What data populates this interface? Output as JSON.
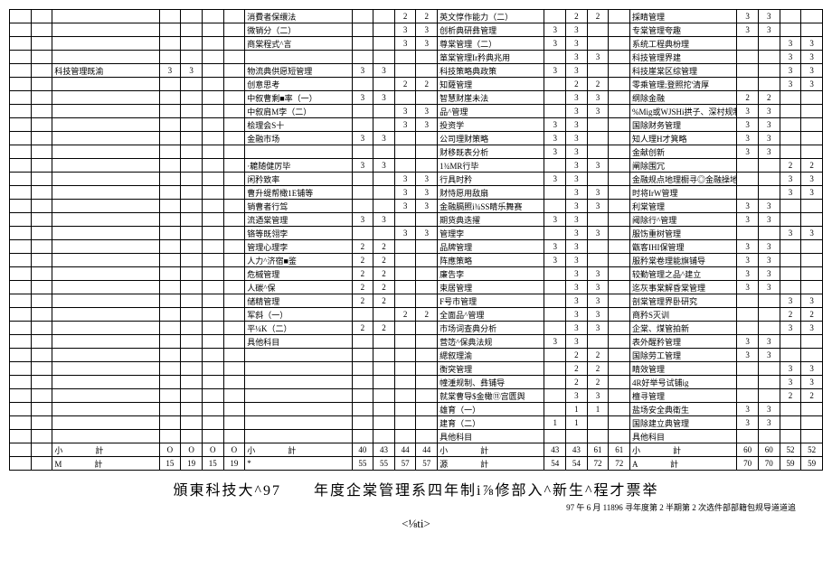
{
  "title": "頒東科技大^97　　年度企棠管理系四年制i⅞修部入^新生^程才票举",
  "subtitle": "<⅛ti>",
  "footnote": "97 午 6 月 11896 寻年度第 2 半期第 2 次选件部部籍包规导道道追",
  "rows": [
    {
      "b3": "消費者保缳法",
      "c1": "",
      "c2": "2",
      "c3": "2",
      "b4": "英文惇作能力（二）",
      "d1": "",
      "d2": "2",
      "d3": "2",
      "b5": "採睛管理",
      "e1": "3",
      "e2": "3"
    },
    {
      "b3": "微销分（二）",
      "c1": "",
      "c2": "3",
      "c3": "3",
      "b4": "创析典研彝管理",
      "d1": "3",
      "d2": "3",
      "d3": "",
      "b5": "专棠管理夸趣",
      "e1": "3",
      "e2": "3"
    },
    {
      "b3": "商棠程式^言",
      "c1": "",
      "c2": "3",
      "c3": "3",
      "b4": "尊棠管理（二）",
      "d1": "3",
      "d2": "3",
      "d3": "",
      "b5": "系统工程典枌理",
      "e3": "3",
      "e4": "3"
    },
    {
      "b3": "",
      "b4": "箪棠管理Ir矜典兆用",
      "d1": "",
      "d2": "3",
      "d3": "3",
      "b5": "科技管理界建",
      "e3": "3",
      "e4": "3"
    },
    {
      "a3": "科技管理既渝",
      "a1": "3",
      "a2": "3",
      "b3": "物流典供愿短管理",
      "b1": "3",
      "b2": "3",
      "b4": "科技策略典政策",
      "d1": "3",
      "d2": "3",
      "d3": "",
      "b5": "科技崖棠区综管理",
      "e3": "3",
      "e4": "3"
    },
    {
      "b3": "创意思考",
      "c1": "",
      "c2": "2",
      "c3": "2",
      "b4": "知薩管理",
      "d1": "",
      "d2": "2",
      "d3": "2",
      "b5": "零乘管理;登照拕'清厚",
      "e3": "3",
      "e4": "3"
    },
    {
      "b3": "中叙曹剩■率（一）",
      "b1": "3",
      "b2": "3",
      "b4": "智慧财崖未法",
      "d1": "",
      "d2": "3",
      "d3": "3",
      "b5": "纲除金融",
      "e1": "2",
      "e2": "2"
    },
    {
      "b3": "中叙肩M孛（二）",
      "c1": "",
      "c2": "3",
      "c3": "3",
      "b4": "品^管理",
      "d1": "",
      "d2": "3",
      "d3": "3",
      "b5": "%Mig或WJSHi拱子、深村规制",
      "e1": "3",
      "e2": "3"
    },
    {
      "b3": "桧理会S十",
      "c1": "",
      "c2": "3",
      "c3": "3",
      "b4": "投资学",
      "d1": "3",
      "d2": "3",
      "d3": "",
      "b5": "国除财务管理",
      "e1": "3",
      "e2": "3"
    },
    {
      "b3": "金融市场",
      "b1": "3",
      "b2": "3",
      "b4": "公司理财策略",
      "d1": "3",
      "d2": "3",
      "d3": "",
      "b5": "知人理H才箕略",
      "e1": "3",
      "e2": "3"
    },
    {
      "b3": "",
      "b4": "财移既表分析",
      "d1": "3",
      "d2": "3",
      "d3": "",
      "b5": "金献创新",
      "e1": "3",
      "e2": "3"
    },
    {
      "b3": "·耱随健厉毕",
      "b1": "3",
      "b2": "3",
      "b4": "1¾MR行毕",
      "d1": "",
      "d2": "3",
      "d3": "3",
      "b5": "阐除围冗",
      "e3": "2",
      "e4": "2"
    },
    {
      "b3": "闲矜致率",
      "c1": "",
      "c2": "3",
      "c3": "3",
      "b4": "行具时矜",
      "d1": "3",
      "d2": "3",
      "d3": "",
      "b5": "金融规点地理橱寻◎金融操地字",
      "e3": "3",
      "e4": "3"
    },
    {
      "b3": "曹升缇帮橄1E铺等",
      "c1": "",
      "c2": "3",
      "c3": "3",
      "b4": "财恃愿用敌扇",
      "d1": "",
      "d2": "3",
      "d3": "3",
      "b5": "时将IrW管理",
      "e3": "3",
      "e4": "3"
    },
    {
      "b3": "销曹者行驾",
      "c1": "",
      "c2": "3",
      "c3": "3",
      "b4": "金融膈照i¾SS睛乐舞赛",
      "d1": "",
      "d2": "3",
      "d3": "3",
      "b5": "利棠管理",
      "e1": "3",
      "e2": "3"
    },
    {
      "b3": "流迺棠管理",
      "b1": "3",
      "b2": "3",
      "b4": "期货典迭擢",
      "d1": "3",
      "d2": "3",
      "d3": "",
      "b5": "阈除行^管理",
      "e1": "3",
      "e2": "3"
    },
    {
      "b3": "铬等既翎孛",
      "c1": "",
      "c2": "3",
      "c3": "3",
      "b4": "管理孛",
      "d1": "",
      "d2": "3",
      "d3": "3",
      "b5": "服饬重树管理",
      "e3": "3",
      "e4": "3"
    },
    {
      "b3": "管理心理孛",
      "b1": "2",
      "b2": "2",
      "b4": "品牌管理",
      "d1": "3",
      "d2": "3",
      "d3": "",
      "b5": "甑客IHI保管理",
      "e1": "3",
      "e2": "3"
    },
    {
      "b3": "人力^济宿■鉴",
      "b1": "2",
      "b2": "2",
      "b4": "阵應策略",
      "d1": "3",
      "d2": "3",
      "d3": "",
      "b5": "服矜棠卷理能旗铺导",
      "e1": "3",
      "e2": "3"
    },
    {
      "b3": "危槭管理",
      "b1": "2",
      "b2": "2",
      "b4": "廉告孛",
      "d1": "",
      "d2": "3",
      "d3": "3",
      "b5": "较勤管理之品^建立",
      "e1": "3",
      "e2": "3"
    },
    {
      "b3": "人碳^保",
      "b1": "2",
      "b2": "2",
      "b4": "束居管理",
      "d1": "",
      "d2": "3",
      "d3": "3",
      "b5": "迄灰事棠解昏棠管理",
      "e1": "3",
      "e2": "3"
    },
    {
      "b3": "储精管理",
      "b1": "2",
      "b2": "2",
      "b4": "F号市管理",
      "d1": "",
      "d2": "3",
      "d3": "3",
      "b5": "剖棠管理界卧研究",
      "e3": "3",
      "e4": "3"
    },
    {
      "b3": "军斜（一）",
      "c1": "",
      "c2": "2",
      "c3": "2",
      "b4": "全面品^管理",
      "d1": "",
      "d2": "3",
      "d3": "3",
      "b5": "商矜S灭训",
      "e3": "2",
      "e4": "2"
    },
    {
      "b3": "平¼K（二）",
      "b1": "2",
      "b2": "2",
      "b4": "市场词查典分析",
      "d1": "",
      "d2": "3",
      "d3": "3",
      "b5": "企棠、煤管拍新",
      "e3": "3",
      "e4": "3"
    },
    {
      "b3": "具他科目",
      "b4": "营笾^保典法规",
      "d1": "3",
      "d2": "3",
      "d3": "",
      "b5": "表外醒矜管理",
      "e1": "3",
      "e2": "3"
    },
    {
      "b4": "緦叙理渝",
      "d1": "",
      "d2": "2",
      "d3": "2",
      "b5": "国除劳工管理",
      "e1": "3",
      "e2": "3"
    },
    {
      "b4": "衡突管理",
      "d1": "",
      "d2": "2",
      "d3": "2",
      "b5": "睛效管理",
      "e3": "3",
      "e4": "3"
    },
    {
      "b4": "幢湩规制、彝铺导",
      "d1": "",
      "d2": "2",
      "d3": "2",
      "b5": "4R好举号试铺ig",
      "e3": "3",
      "e4": "3"
    },
    {
      "b4": "就棠曹导$金橄⑪宫匮舆",
      "d1": "",
      "d2": "3",
      "d3": "3",
      "b5": "檀寻管理",
      "e3": "2",
      "e4": "2"
    },
    {
      "b4": "雄育（一）",
      "d1": "",
      "d2": "1",
      "d3": "1",
      "b5": "盐场安全典衛生",
      "e1": "3",
      "e2": "3"
    },
    {
      "b4": "建育（二）",
      "d1": "1",
      "d2": "1",
      "d3": "",
      "b5": "国除建立典管理",
      "e1": "3",
      "e2": "3"
    },
    {
      "b4": "具他科目",
      "b5": "具他科目"
    }
  ],
  "subtotal_row": {
    "label": "小　　　　計",
    "a": [
      "O",
      "O",
      "O",
      "O"
    ],
    "b": [
      "40",
      "43",
      "44",
      "44"
    ],
    "c": [
      "43",
      "43",
      "61",
      "61"
    ],
    "d": [
      "60",
      "60",
      "52",
      "52"
    ]
  },
  "total_row": {
    "label_m": "M　　　　計",
    "a": [
      "15",
      "19",
      "15",
      "19"
    ],
    "star": "*",
    "b": [
      "55",
      "55",
      "57",
      "57"
    ],
    "label_src": "源　　　　計",
    "c": [
      "54",
      "54",
      "72",
      "72"
    ],
    "label_a2": "A　　　　計",
    "d": [
      "70",
      "70",
      "59",
      "59"
    ]
  }
}
